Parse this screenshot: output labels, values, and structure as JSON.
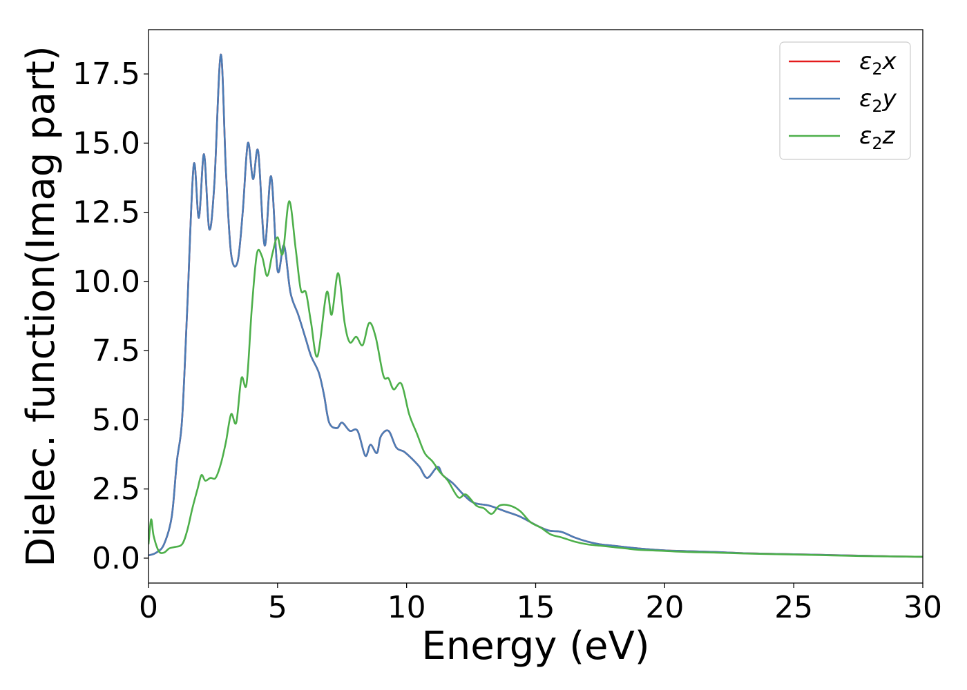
{
  "chart_data": {
    "type": "line",
    "title": "",
    "xlabel": "Energy (eV)",
    "ylabel": "Dielec. function(Imag part)",
    "xlim": [
      0,
      30
    ],
    "ylim": [
      -0.9,
      19.1
    ],
    "xticks": [
      0,
      5,
      10,
      15,
      20,
      25,
      30
    ],
    "xtick_labels": [
      "0",
      "5",
      "10",
      "15",
      "20",
      "25",
      "30"
    ],
    "yticks": [
      0,
      2.5,
      5,
      7.5,
      10,
      12.5,
      15,
      17.5
    ],
    "ytick_labels": [
      "0.0",
      "2.5",
      "5.0",
      "7.5",
      "10.0",
      "12.5",
      "15.0",
      "17.5"
    ],
    "grid": false,
    "legend_position": "top-right",
    "series": [
      {
        "name": "ε2x",
        "name_main": "ε",
        "name_sub": "2",
        "name_suffix": "x",
        "color": "#e41a1c",
        "x": [
          0,
          0.3,
          0.6,
          0.9,
          1.1,
          1.3,
          1.5,
          1.75,
          1.95,
          2.15,
          2.35,
          2.55,
          2.8,
          3.0,
          3.2,
          3.45,
          3.65,
          3.85,
          4.05,
          4.25,
          4.5,
          4.75,
          5.0,
          5.25,
          5.5,
          5.8,
          6.1,
          6.3,
          6.6,
          6.8,
          7.0,
          7.3,
          7.5,
          7.8,
          8.1,
          8.4,
          8.6,
          8.85,
          9.0,
          9.3,
          9.6,
          9.9,
          10.2,
          10.5,
          10.8,
          11.2,
          11.4,
          11.8,
          12.2,
          12.6,
          13.2,
          13.8,
          14.4,
          15.0,
          15.5,
          16.0,
          16.5,
          17.0,
          17.5,
          18.0,
          19.0,
          20.0,
          21.0,
          22.0,
          23.0,
          24.0,
          25.0,
          26.0,
          27.0,
          28.0,
          29.0,
          30.0
        ],
        "y": [
          0.1,
          0.2,
          0.5,
          1.5,
          3.5,
          5.0,
          9.0,
          14.2,
          12.3,
          14.6,
          11.9,
          13.5,
          18.2,
          14.0,
          11.0,
          10.7,
          12.5,
          15.0,
          13.7,
          14.7,
          11.3,
          13.8,
          10.4,
          11.3,
          9.6,
          8.8,
          7.9,
          7.3,
          6.7,
          5.9,
          4.9,
          4.7,
          4.9,
          4.6,
          4.6,
          3.7,
          4.1,
          3.8,
          4.4,
          4.6,
          4.0,
          3.85,
          3.6,
          3.3,
          2.9,
          3.3,
          3.0,
          2.7,
          2.3,
          2.0,
          1.9,
          1.7,
          1.5,
          1.2,
          1.0,
          0.95,
          0.75,
          0.6,
          0.5,
          0.45,
          0.35,
          0.28,
          0.25,
          0.22,
          0.18,
          0.16,
          0.14,
          0.12,
          0.1,
          0.08,
          0.06,
          0.05
        ]
      },
      {
        "name": "ε2y",
        "name_main": "ε",
        "name_sub": "2",
        "name_suffix": "y",
        "color": "#4b7db6",
        "x": [
          0,
          0.3,
          0.6,
          0.9,
          1.1,
          1.3,
          1.5,
          1.75,
          1.95,
          2.15,
          2.35,
          2.55,
          2.8,
          3.0,
          3.2,
          3.45,
          3.65,
          3.85,
          4.05,
          4.25,
          4.5,
          4.75,
          5.0,
          5.25,
          5.5,
          5.8,
          6.1,
          6.3,
          6.6,
          6.8,
          7.0,
          7.3,
          7.5,
          7.8,
          8.1,
          8.4,
          8.6,
          8.85,
          9.0,
          9.3,
          9.6,
          9.9,
          10.2,
          10.5,
          10.8,
          11.2,
          11.4,
          11.8,
          12.2,
          12.6,
          13.2,
          13.8,
          14.4,
          15.0,
          15.5,
          16.0,
          16.5,
          17.0,
          17.5,
          18.0,
          19.0,
          20.0,
          21.0,
          22.0,
          23.0,
          24.0,
          25.0,
          26.0,
          27.0,
          28.0,
          29.0,
          30.0
        ],
        "y": [
          0.1,
          0.2,
          0.5,
          1.5,
          3.5,
          5.0,
          9.0,
          14.2,
          12.3,
          14.6,
          11.9,
          13.5,
          18.2,
          14.0,
          11.0,
          10.7,
          12.5,
          15.0,
          13.7,
          14.7,
          11.3,
          13.8,
          10.4,
          11.3,
          9.6,
          8.8,
          7.9,
          7.3,
          6.7,
          5.9,
          4.9,
          4.7,
          4.9,
          4.6,
          4.6,
          3.7,
          4.1,
          3.8,
          4.4,
          4.6,
          4.0,
          3.85,
          3.6,
          3.3,
          2.9,
          3.3,
          3.0,
          2.7,
          2.3,
          2.0,
          1.9,
          1.7,
          1.5,
          1.2,
          1.0,
          0.95,
          0.75,
          0.6,
          0.5,
          0.45,
          0.35,
          0.28,
          0.25,
          0.22,
          0.18,
          0.16,
          0.14,
          0.12,
          0.1,
          0.08,
          0.06,
          0.05
        ]
      },
      {
        "name": "ε2z",
        "name_main": "ε",
        "name_sub": "2",
        "name_suffix": "z",
        "color": "#4daf4a",
        "x": [
          0,
          0.1,
          0.2,
          0.4,
          0.6,
          0.8,
          1.0,
          1.3,
          1.5,
          1.7,
          1.9,
          2.05,
          2.2,
          2.4,
          2.6,
          2.8,
          3.0,
          3.2,
          3.4,
          3.6,
          3.8,
          4.0,
          4.2,
          4.4,
          4.6,
          4.8,
          5.0,
          5.2,
          5.45,
          5.7,
          5.9,
          6.1,
          6.3,
          6.55,
          6.9,
          7.1,
          7.35,
          7.6,
          7.8,
          8.05,
          8.3,
          8.55,
          8.8,
          9.1,
          9.3,
          9.5,
          9.8,
          10.1,
          10.4,
          10.7,
          11.0,
          11.3,
          11.6,
          12.0,
          12.3,
          12.7,
          13.0,
          13.3,
          13.6,
          14.0,
          14.4,
          14.8,
          15.2,
          15.6,
          16.0,
          16.5,
          17.0,
          17.5,
          18.0,
          18.5,
          19.0,
          20.0,
          21.0,
          22.0,
          23.0,
          24.0,
          25.0,
          26.0,
          27.0,
          28.0,
          29.0,
          30.0
        ],
        "y": [
          0.5,
          1.4,
          0.8,
          0.25,
          0.2,
          0.35,
          0.4,
          0.5,
          1.0,
          1.8,
          2.5,
          3.0,
          2.8,
          2.9,
          2.9,
          3.4,
          4.2,
          5.2,
          4.9,
          6.5,
          6.3,
          9.0,
          11.0,
          10.9,
          10.2,
          11.0,
          11.6,
          11.0,
          12.9,
          11.2,
          9.7,
          9.6,
          8.5,
          7.3,
          9.6,
          8.8,
          10.3,
          8.5,
          7.8,
          8.0,
          7.7,
          8.5,
          8.0,
          6.6,
          6.5,
          6.1,
          6.3,
          5.2,
          4.5,
          3.8,
          3.5,
          3.1,
          2.8,
          2.2,
          2.3,
          1.9,
          1.8,
          1.6,
          1.9,
          1.9,
          1.7,
          1.3,
          1.1,
          0.85,
          0.75,
          0.6,
          0.5,
          0.45,
          0.4,
          0.35,
          0.3,
          0.26,
          0.22,
          0.2,
          0.17,
          0.15,
          0.13,
          0.11,
          0.09,
          0.07,
          0.06,
          0.05
        ]
      }
    ]
  }
}
